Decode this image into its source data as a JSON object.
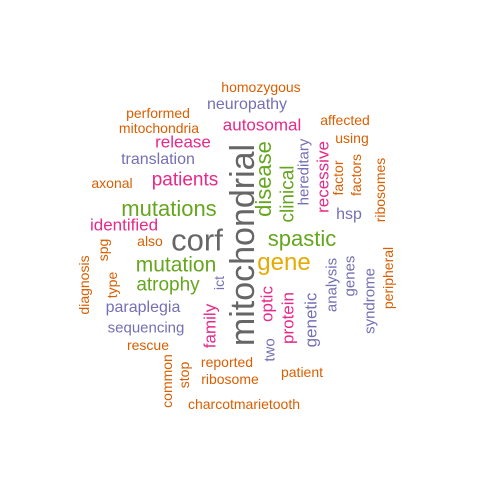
{
  "palette": {
    "green": "#66a61e",
    "orange": "#d95f02",
    "purple": "#7570b3",
    "magenta": "#e7298a",
    "teal": "#1b9e77",
    "gold": "#e6ab02",
    "gray": "#666666"
  },
  "words": [
    {
      "text": "mitochondrial",
      "color": "gray"
    },
    {
      "text": "corf",
      "color": "gray"
    },
    {
      "text": "gene",
      "color": "gold"
    },
    {
      "text": "disease",
      "color": "green"
    },
    {
      "text": "spastic",
      "color": "green"
    },
    {
      "text": "mutations",
      "color": "green"
    },
    {
      "text": "mutation",
      "color": "green"
    },
    {
      "text": "atrophy",
      "color": "green"
    },
    {
      "text": "clinical",
      "color": "green"
    },
    {
      "text": "patients",
      "color": "magenta"
    },
    {
      "text": "release",
      "color": "magenta"
    },
    {
      "text": "autosomal",
      "color": "magenta"
    },
    {
      "text": "identified",
      "color": "magenta"
    },
    {
      "text": "recessive",
      "color": "magenta"
    },
    {
      "text": "optic",
      "color": "magenta"
    },
    {
      "text": "protein",
      "color": "magenta"
    },
    {
      "text": "family",
      "color": "magenta"
    },
    {
      "text": "neuropathy",
      "color": "purple"
    },
    {
      "text": "translation",
      "color": "purple"
    },
    {
      "text": "hereditary",
      "color": "purple"
    },
    {
      "text": "hsp",
      "color": "purple"
    },
    {
      "text": "paraplegia",
      "color": "purple"
    },
    {
      "text": "sequencing",
      "color": "purple"
    },
    {
      "text": "genetic",
      "color": "purple"
    },
    {
      "text": "analysis",
      "color": "purple"
    },
    {
      "text": "genes",
      "color": "purple"
    },
    {
      "text": "syndrome",
      "color": "purple"
    },
    {
      "text": "two",
      "color": "purple"
    },
    {
      "text": "ict",
      "color": "purple"
    },
    {
      "text": "homozygous",
      "color": "orange"
    },
    {
      "text": "performed",
      "color": "orange"
    },
    {
      "text": "mitochondria",
      "color": "orange"
    },
    {
      "text": "affected",
      "color": "orange"
    },
    {
      "text": "using",
      "color": "orange"
    },
    {
      "text": "axonal",
      "color": "orange"
    },
    {
      "text": "factor",
      "color": "orange"
    },
    {
      "text": "factors",
      "color": "orange"
    },
    {
      "text": "ribosomes",
      "color": "orange"
    },
    {
      "text": "also",
      "color": "orange"
    },
    {
      "text": "spg",
      "color": "orange"
    },
    {
      "text": "diagnosis",
      "color": "orange"
    },
    {
      "text": "type",
      "color": "orange"
    },
    {
      "text": "rescue",
      "color": "orange"
    },
    {
      "text": "reported",
      "color": "orange"
    },
    {
      "text": "stop",
      "color": "orange"
    },
    {
      "text": "ribosome",
      "color": "orange"
    },
    {
      "text": "common",
      "color": "orange"
    },
    {
      "text": "charcotmarietooth",
      "color": "orange"
    },
    {
      "text": "patient",
      "color": "orange"
    },
    {
      "text": "peripheral",
      "color": "orange"
    }
  ]
}
